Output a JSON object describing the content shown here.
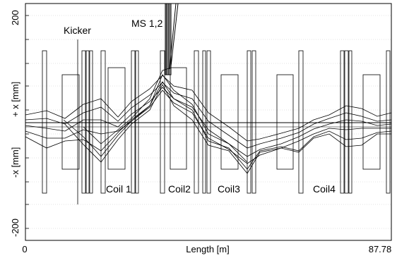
{
  "y_axis": {
    "label_pos": "+ x [mm]",
    "label_neg": "-x [mm]",
    "tick_top": "200",
    "tick_bottom": "-200",
    "range": [
      -200,
      200
    ]
  },
  "x_axis": {
    "label": "Length [m]",
    "tick_start": "0",
    "tick_end": "87.78",
    "range": [
      0,
      87.78
    ]
  },
  "annotations": {
    "kicker": "Kicker",
    "septum": "MS 1,2",
    "coil1": "Coil 1",
    "coil2": "Coil2",
    "coil3": "Coil3",
    "coil4": "Coil4"
  }
}
